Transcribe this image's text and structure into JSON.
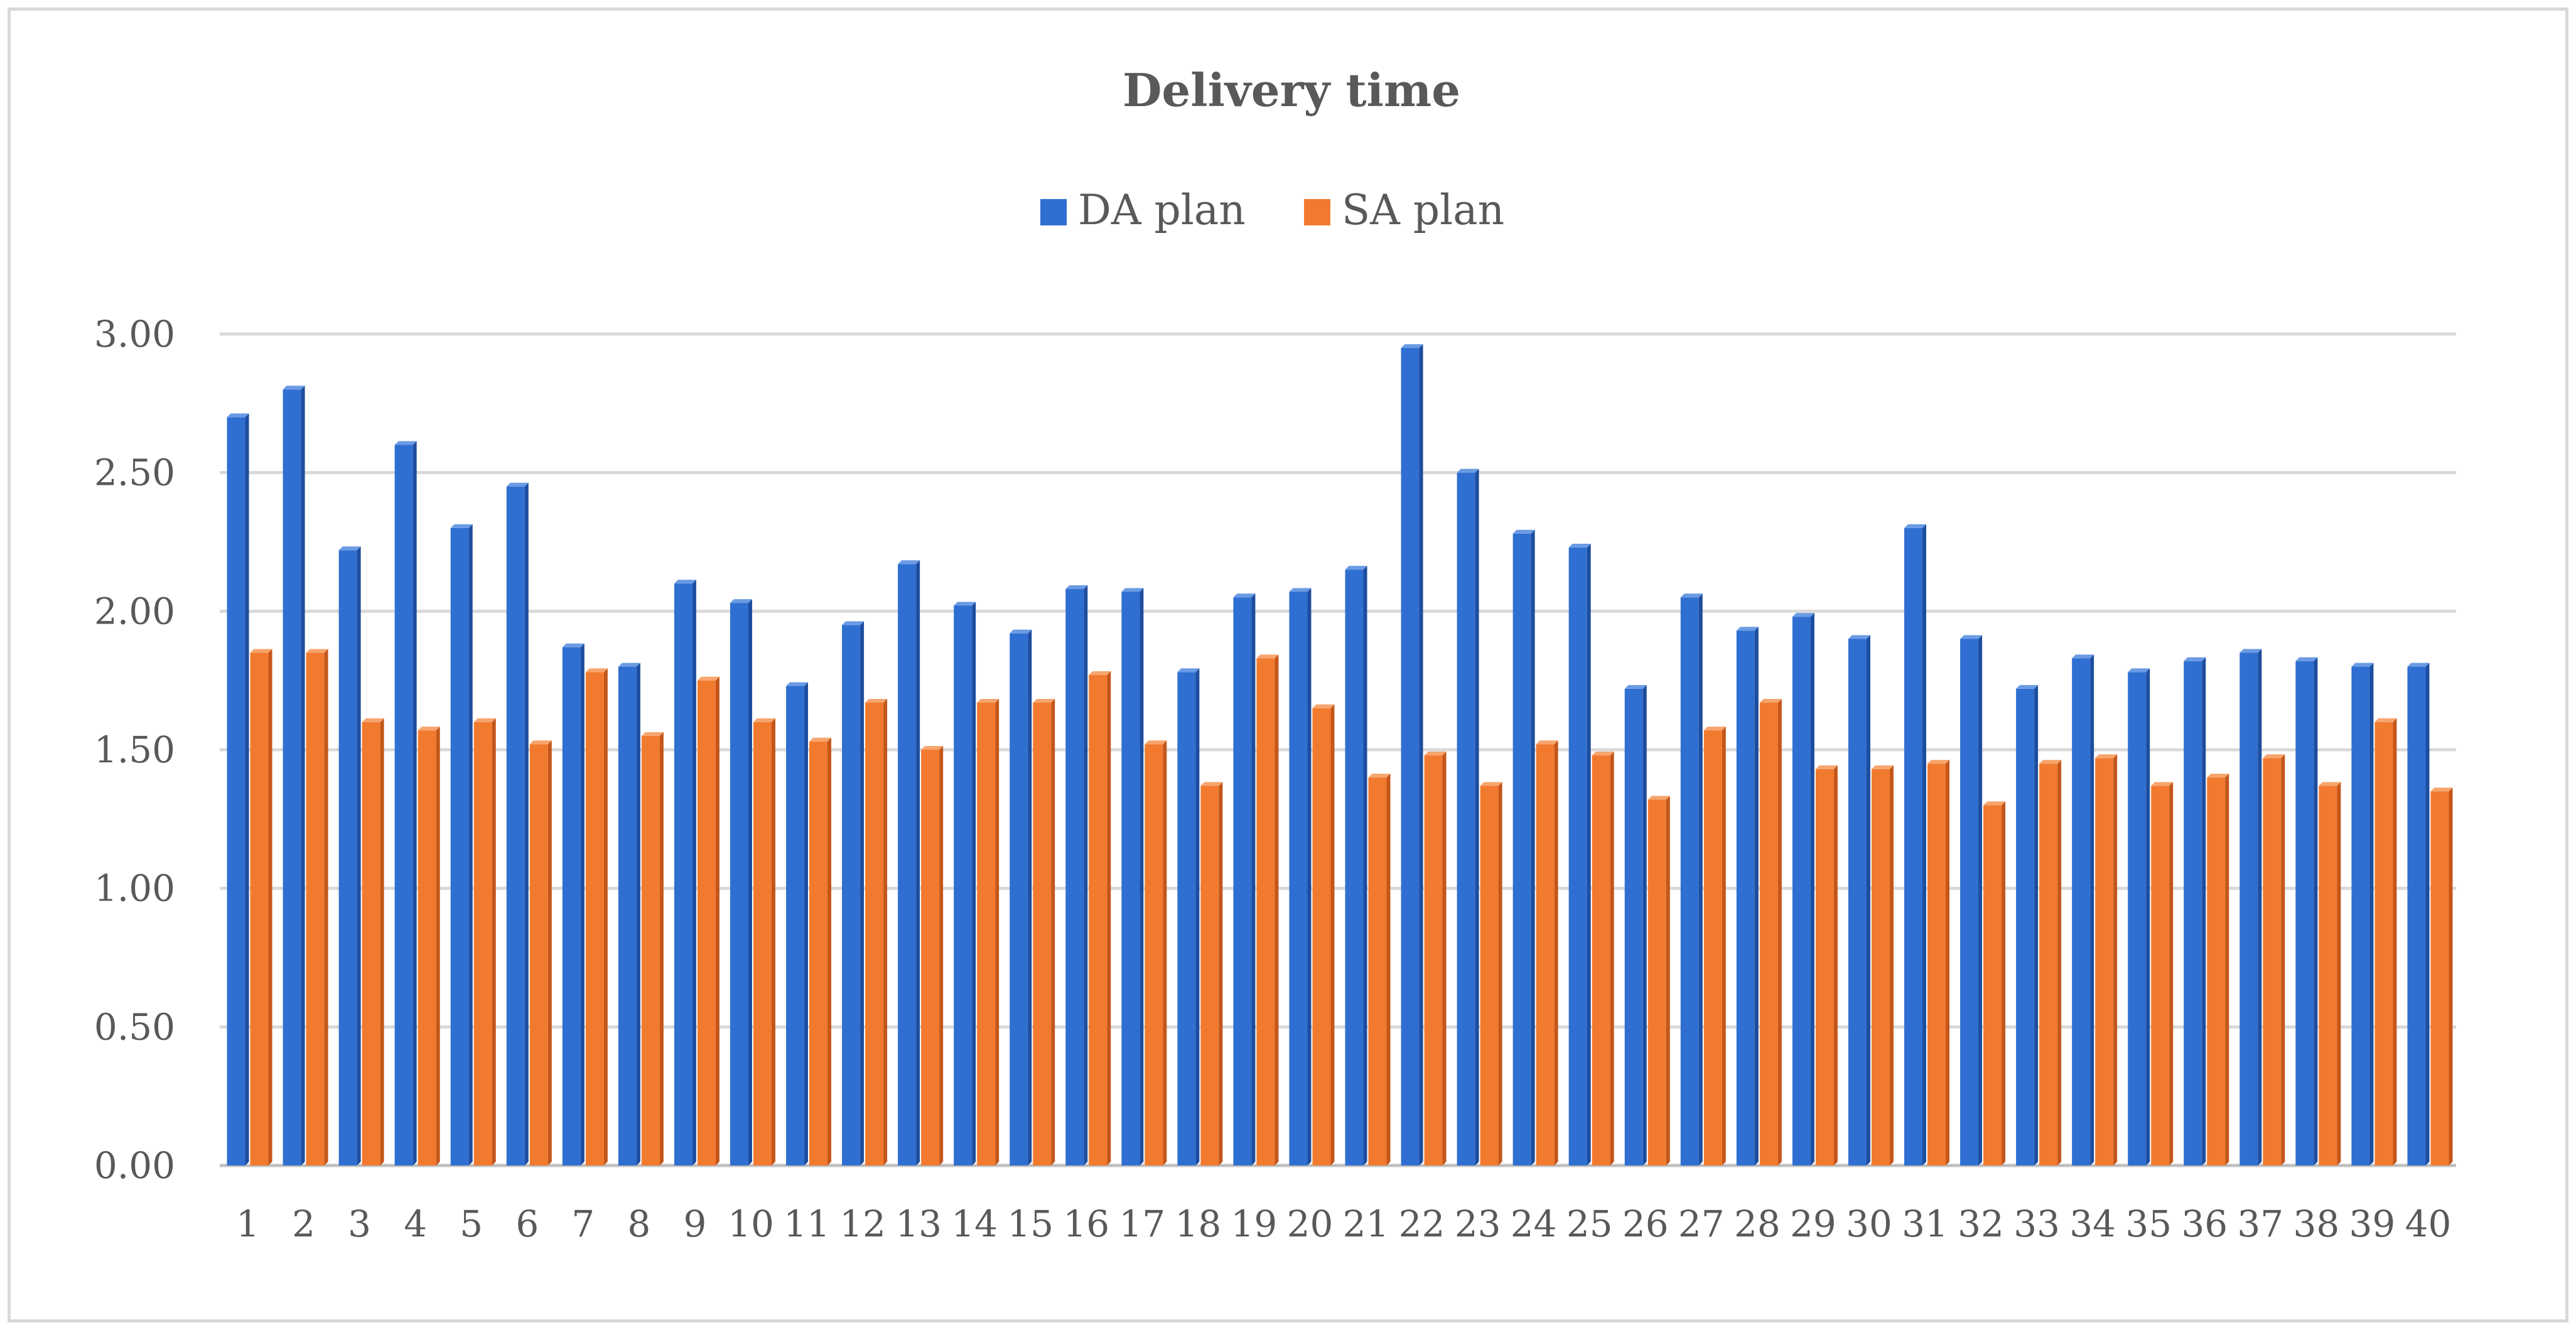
{
  "chart_data": {
    "type": "bar",
    "title": "Delivery time",
    "xlabel": "",
    "ylabel": "",
    "ylim": [
      0,
      3
    ],
    "y_ticks": [
      "0.00",
      "0.50",
      "1.00",
      "1.50",
      "2.00",
      "2.50",
      "3.00"
    ],
    "grid": true,
    "legend_position": "top",
    "categories": [
      "1",
      "2",
      "3",
      "4",
      "5",
      "6",
      "7",
      "8",
      "9",
      "10",
      "11",
      "12",
      "13",
      "14",
      "15",
      "16",
      "17",
      "18",
      "19",
      "20",
      "21",
      "22",
      "23",
      "24",
      "25",
      "26",
      "27",
      "28",
      "29",
      "30",
      "31",
      "32",
      "33",
      "34",
      "35",
      "36",
      "37",
      "38",
      "39",
      "40"
    ],
    "series": [
      {
        "name": "DA plan",
        "color": "#2f6fd1",
        "values": [
          2.7,
          2.8,
          2.22,
          2.6,
          2.3,
          2.45,
          1.87,
          1.8,
          2.1,
          2.03,
          1.73,
          1.95,
          2.17,
          2.02,
          1.92,
          2.08,
          2.07,
          1.78,
          2.05,
          2.07,
          2.15,
          2.95,
          2.5,
          2.28,
          2.23,
          1.72,
          2.05,
          1.93,
          1.98,
          1.9,
          2.3,
          1.9,
          1.72,
          1.83,
          1.78,
          1.82,
          1.85,
          1.82,
          1.8,
          1.8
        ]
      },
      {
        "name": "SA plan",
        "color": "#f27a2e",
        "values": [
          1.85,
          1.85,
          1.6,
          1.57,
          1.6,
          1.52,
          1.78,
          1.55,
          1.75,
          1.6,
          1.53,
          1.67,
          1.5,
          1.67,
          1.67,
          1.77,
          1.52,
          1.37,
          1.83,
          1.65,
          1.4,
          1.48,
          1.37,
          1.52,
          1.48,
          1.32,
          1.57,
          1.67,
          1.43,
          1.43,
          1.45,
          1.3,
          1.45,
          1.47,
          1.37,
          1.4,
          1.47,
          1.37,
          1.6,
          1.35
        ]
      }
    ]
  }
}
